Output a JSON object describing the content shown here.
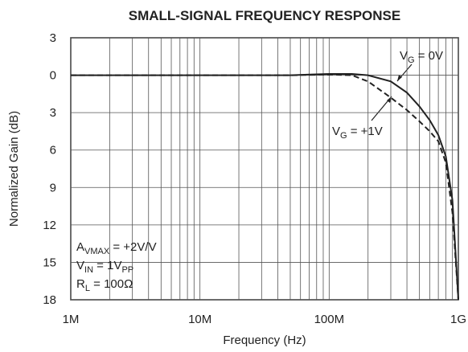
{
  "chart_data": {
    "type": "line",
    "title": "SMALL-SIGNAL FREQUENCY RESPONSE",
    "xlabel": "Frequency (Hz)",
    "ylabel": "Normalized Gain (dB)",
    "xscale": "log",
    "grid": true,
    "xlim": [
      1000000,
      1000000000
    ],
    "xticks": [
      {
        "value": 1000000,
        "label": "1M"
      },
      {
        "value": 10000000,
        "label": "10M"
      },
      {
        "value": 100000000,
        "label": "100M"
      },
      {
        "value": 1000000000,
        "label": "1G"
      }
    ],
    "ylim": [
      -18,
      3
    ],
    "yticks": [
      {
        "value": 3,
        "label": "3"
      },
      0,
      {
        "value": -3,
        "label": "3"
      },
      {
        "value": -6,
        "label": "6"
      },
      {
        "value": -9,
        "label": "9"
      },
      {
        "value": -12,
        "label": "12"
      },
      {
        "value": -15,
        "label": "15"
      },
      {
        "value": -18,
        "label": "18"
      }
    ],
    "x": [
      1000000,
      10000000,
      50000000,
      100000000,
      150000000,
      200000000,
      300000000,
      400000000,
      500000000,
      600000000,
      700000000,
      800000000,
      900000000,
      1000000000
    ],
    "series": [
      {
        "name": "VG = 0V",
        "color": "#222222",
        "dash": false,
        "values": [
          0,
          0,
          0,
          0.1,
          0.1,
          0,
          -0.5,
          -1.4,
          -2.5,
          -3.6,
          -4.8,
          -6.5,
          -10,
          -18
        ]
      },
      {
        "name": "VG = +1V",
        "color": "#222222",
        "dash": true,
        "values": [
          0,
          0,
          0,
          0.05,
          0,
          -0.5,
          -1.8,
          -2.8,
          -3.7,
          -4.5,
          -5.3,
          -7,
          -11,
          -18
        ]
      }
    ],
    "annotations": [
      [
        "V",
        "G",
        " = 0V"
      ],
      [
        "V",
        "G",
        " = +1V"
      ],
      [
        "A",
        "VMAX",
        " = +2V/V"
      ],
      [
        "V",
        "IN",
        " = 1V",
        "PP"
      ],
      [
        "R",
        "L",
        " = 100Ω"
      ]
    ]
  }
}
